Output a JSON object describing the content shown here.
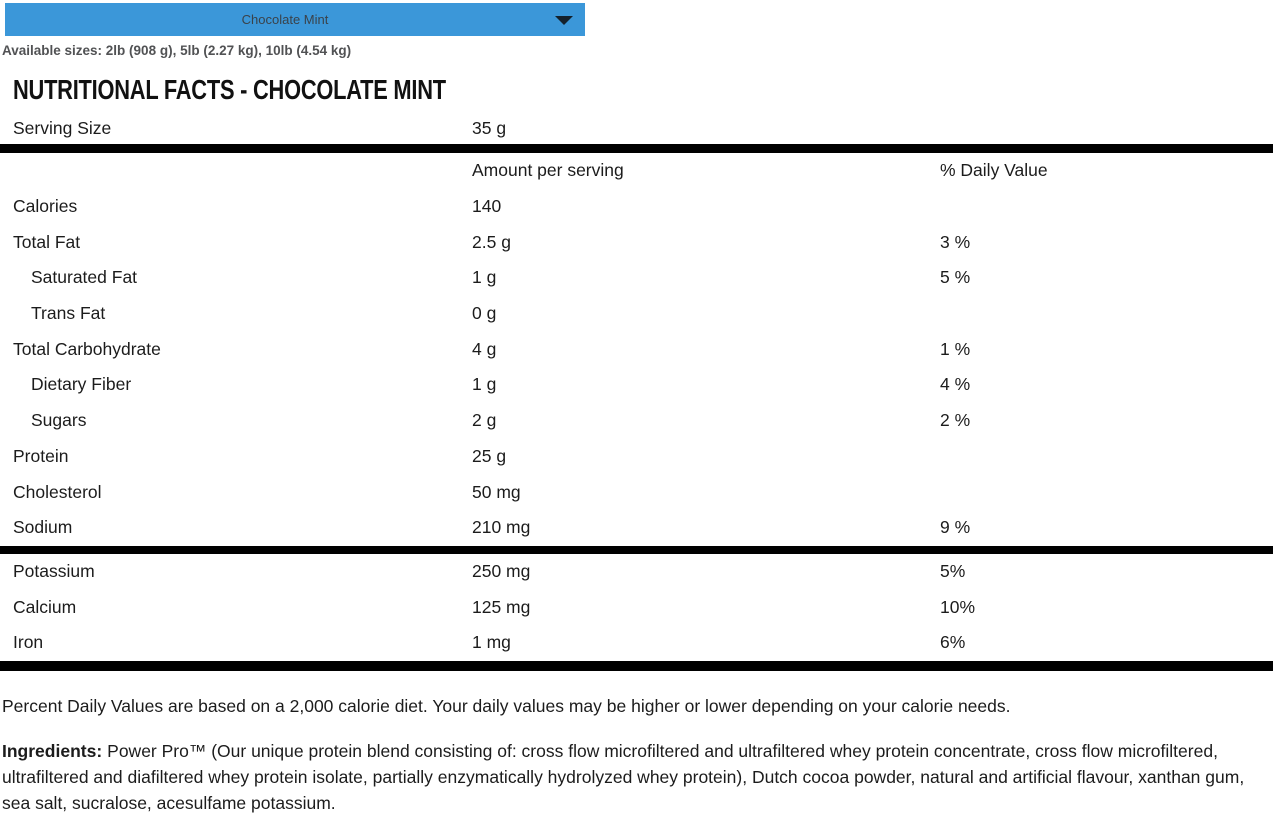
{
  "colors": {
    "dropdown_blue": "#3b97d9",
    "dropdown_text": "#3a424a",
    "chevron_dark": "#14212c",
    "table_bar_black": "#000000",
    "body_text": "#1c1c1c",
    "sizes_text_gray": "#515254"
  },
  "flavor_select": {
    "value": "Chocolate Mint",
    "chevron_icon": "chevron-down"
  },
  "available_sizes": "Available sizes: 2lb (908 g), 5lb (2.27 kg), 10lb (4.54 kg)",
  "heading": "NUTRITIONAL FACTS - CHOCOLATE MINT",
  "serving": {
    "label": "Serving Size",
    "amount": "35 g"
  },
  "columns": {
    "amount": "Amount per serving",
    "daily_value": "% Daily Value"
  },
  "rows": [
    {
      "label": "Calories",
      "amount": "140",
      "dv": ""
    },
    {
      "label": "Total Fat",
      "amount": "2.5 g",
      "dv": "3 %"
    },
    {
      "label": "Saturated Fat",
      "amount": "1 g",
      "dv": "5 %"
    },
    {
      "label": "Trans Fat",
      "amount": "0 g",
      "dv": ""
    },
    {
      "label": "Total Carbohydrate",
      "amount": "4 g",
      "dv": "1 %"
    },
    {
      "label": "Dietary Fiber",
      "amount": "1 g",
      "dv": "4 %"
    },
    {
      "label": "Sugars",
      "amount": "2 g",
      "dv": "2 %"
    },
    {
      "label": "Protein",
      "amount": "25 g",
      "dv": ""
    },
    {
      "label": "Cholesterol",
      "amount": "50 mg",
      "dv": ""
    },
    {
      "label": "Sodium",
      "amount": "210 mg",
      "dv": "9 %"
    }
  ],
  "minerals": [
    {
      "label": "Potassium",
      "amount": "250 mg",
      "dv": "5%"
    },
    {
      "label": "Calcium",
      "amount": "125 mg",
      "dv": "10%"
    },
    {
      "label": "Iron",
      "amount": "1 mg",
      "dv": "6%"
    }
  ],
  "footnote": "Percent Daily Values are based on a 2,000 calorie diet. Your daily values may be higher or lower depending on your calorie needs.",
  "ingredients": {
    "label": "Ingredients:",
    "text": "Power Pro™ (Our unique protein blend consisting of: cross flow microfiltered and ultrafiltered whey protein concentrate, cross flow microfiltered, ultrafiltered and diafiltered whey protein isolate, partially enzymatically hydrolyzed whey protein), Dutch cocoa powder, natural and artificial flavour, xanthan gum, sea salt, sucralose, acesulfame potassium."
  }
}
